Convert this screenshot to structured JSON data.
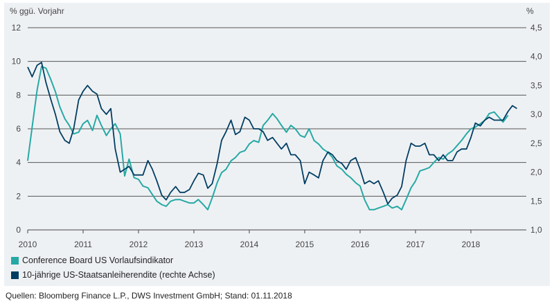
{
  "chart_data": {
    "type": "line",
    "left_axis_title": "% ggü. Vorjahr",
    "right_axis_title": "%",
    "left_ylim": [
      0,
      12
    ],
    "left_ticks": [
      "0",
      "2",
      "4",
      "6",
      "8",
      "10",
      "12"
    ],
    "right_ylim": [
      1.0,
      4.5
    ],
    "right_ticks": [
      "1,0",
      "1,5",
      "2,0",
      "2,5",
      "3,0",
      "3,5",
      "4,0",
      "4,5"
    ],
    "x_ticks": [
      "2010",
      "2011",
      "2012",
      "2013",
      "2014",
      "2015",
      "2016",
      "2017",
      "2018"
    ],
    "xlim": [
      2010.0,
      2019.0
    ],
    "grid": "horizontal",
    "series": [
      {
        "name": "Conference Board US Vorlaufsindikator",
        "axis": "left",
        "color": "#26a9a4",
        "x": [
          2010.0,
          2010.08,
          2010.17,
          2010.25,
          2010.33,
          2010.42,
          2010.5,
          2010.58,
          2010.67,
          2010.75,
          2010.83,
          2010.92,
          2011.0,
          2011.08,
          2011.17,
          2011.25,
          2011.33,
          2011.42,
          2011.5,
          2011.58,
          2011.67,
          2011.75,
          2011.83,
          2011.92,
          2012.0,
          2012.08,
          2012.17,
          2012.25,
          2012.33,
          2012.42,
          2012.5,
          2012.58,
          2012.67,
          2012.75,
          2012.83,
          2012.92,
          2013.0,
          2013.08,
          2013.17,
          2013.25,
          2013.33,
          2013.42,
          2013.5,
          2013.58,
          2013.67,
          2013.75,
          2013.83,
          2013.92,
          2014.0,
          2014.08,
          2014.17,
          2014.25,
          2014.33,
          2014.42,
          2014.5,
          2014.58,
          2014.67,
          2014.75,
          2014.83,
          2014.92,
          2015.0,
          2015.08,
          2015.17,
          2015.25,
          2015.33,
          2015.42,
          2015.5,
          2015.58,
          2015.67,
          2015.75,
          2015.83,
          2015.92,
          2016.0,
          2016.08,
          2016.17,
          2016.25,
          2016.33,
          2016.42,
          2016.5,
          2016.58,
          2016.67,
          2016.75,
          2016.83,
          2016.92,
          2017.0,
          2017.08,
          2017.17,
          2017.25,
          2017.33,
          2017.42,
          2017.5,
          2017.58,
          2017.67,
          2017.75,
          2017.83,
          2017.92,
          2018.0,
          2018.08,
          2018.17,
          2018.25,
          2018.33,
          2018.42,
          2018.5,
          2018.58,
          2018.67
        ],
        "values": [
          4.1,
          6.1,
          8.3,
          9.7,
          9.6,
          8.9,
          8.2,
          7.3,
          6.6,
          6.2,
          5.7,
          5.8,
          6.3,
          6.5,
          5.9,
          6.8,
          6.2,
          5.6,
          6.0,
          6.3,
          5.7,
          3.2,
          4.2,
          3.1,
          3.0,
          2.6,
          2.5,
          2.1,
          1.7,
          1.5,
          1.4,
          1.7,
          1.8,
          1.8,
          1.7,
          1.6,
          1.6,
          1.8,
          1.5,
          1.2,
          1.9,
          2.8,
          3.4,
          3.6,
          4.1,
          4.3,
          4.6,
          4.7,
          5.1,
          5.3,
          5.2,
          6.2,
          6.5,
          6.9,
          6.6,
          6.2,
          5.8,
          6.2,
          6.0,
          5.6,
          5.5,
          6.0,
          5.3,
          5.1,
          4.8,
          4.6,
          4.3,
          3.8,
          3.6,
          3.3,
          3.1,
          2.8,
          2.6,
          1.8,
          1.2,
          1.2,
          1.3,
          1.4,
          1.5,
          1.3,
          1.4,
          1.2,
          1.8,
          2.5,
          2.9,
          3.5,
          3.6,
          3.7,
          4.0,
          4.3,
          4.2,
          4.5,
          4.7,
          5.0,
          5.3,
          5.7,
          6.0,
          6.1,
          6.3,
          6.5,
          6.9,
          7.0,
          6.7,
          6.4,
          6.8
        ]
      },
      {
        "name": "10-jährige US-Staatsanleiherendite (rechte Achse)",
        "axis": "right",
        "color": "#003d62",
        "x": [
          2010.0,
          2010.08,
          2010.17,
          2010.25,
          2010.33,
          2010.42,
          2010.5,
          2010.58,
          2010.67,
          2010.75,
          2010.83,
          2010.92,
          2011.0,
          2011.08,
          2011.17,
          2011.25,
          2011.33,
          2011.42,
          2011.5,
          2011.58,
          2011.67,
          2011.75,
          2011.83,
          2011.92,
          2012.0,
          2012.08,
          2012.17,
          2012.25,
          2012.33,
          2012.42,
          2012.5,
          2012.58,
          2012.67,
          2012.75,
          2012.83,
          2012.92,
          2013.0,
          2013.08,
          2013.17,
          2013.25,
          2013.33,
          2013.42,
          2013.5,
          2013.58,
          2013.67,
          2013.75,
          2013.83,
          2013.92,
          2014.0,
          2014.08,
          2014.17,
          2014.25,
          2014.33,
          2014.42,
          2014.5,
          2014.58,
          2014.67,
          2014.75,
          2014.83,
          2014.92,
          2015.0,
          2015.08,
          2015.17,
          2015.25,
          2015.33,
          2015.42,
          2015.5,
          2015.58,
          2015.67,
          2015.75,
          2015.83,
          2015.92,
          2016.0,
          2016.08,
          2016.17,
          2016.25,
          2016.33,
          2016.42,
          2016.5,
          2016.58,
          2016.67,
          2016.75,
          2016.83,
          2016.92,
          2017.0,
          2017.08,
          2017.17,
          2017.25,
          2017.33,
          2017.42,
          2017.5,
          2017.58,
          2017.67,
          2017.75,
          2017.83,
          2017.92,
          2018.0,
          2018.08,
          2018.17,
          2018.25,
          2018.33,
          2018.42,
          2018.5,
          2018.58,
          2018.67,
          2018.75,
          2018.83
        ],
        "values": [
          3.82,
          3.65,
          3.85,
          3.9,
          3.55,
          3.25,
          3.0,
          2.7,
          2.55,
          2.5,
          2.75,
          3.25,
          3.4,
          3.5,
          3.4,
          3.35,
          3.1,
          3.0,
          3.1,
          2.4,
          2.0,
          2.05,
          2.1,
          1.95,
          1.95,
          1.95,
          2.2,
          2.05,
          1.85,
          1.6,
          1.52,
          1.65,
          1.75,
          1.65,
          1.65,
          1.7,
          1.85,
          1.98,
          1.95,
          1.72,
          1.8,
          2.15,
          2.55,
          2.7,
          2.9,
          2.65,
          2.7,
          2.95,
          2.9,
          2.75,
          2.75,
          2.7,
          2.55,
          2.6,
          2.5,
          2.4,
          2.5,
          2.3,
          2.3,
          2.2,
          1.8,
          2.0,
          1.95,
          1.9,
          2.2,
          2.35,
          2.3,
          2.2,
          2.15,
          2.05,
          2.2,
          2.25,
          2.05,
          1.8,
          1.85,
          1.8,
          1.85,
          1.65,
          1.45,
          1.55,
          1.6,
          1.75,
          2.2,
          2.5,
          2.45,
          2.45,
          2.5,
          2.3,
          2.3,
          2.2,
          2.3,
          2.2,
          2.2,
          2.35,
          2.4,
          2.4,
          2.6,
          2.85,
          2.8,
          2.9,
          2.95,
          2.9,
          2.9,
          2.9,
          3.05,
          3.15,
          3.1
        ]
      }
    ]
  },
  "footer": {
    "source": "Quellen: Bloomberg Finance L.P., DWS Investment GmbH; Stand: 01.11.2018"
  }
}
